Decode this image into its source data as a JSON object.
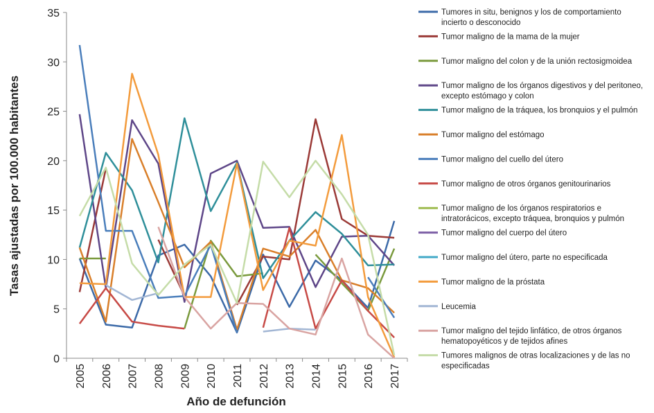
{
  "chart_data": {
    "type": "line",
    "title": "",
    "xlabel": "Año de defunción",
    "ylabel": "Tasas ajustadas por 100.000 habitantes",
    "x": [
      "2005",
      "2006",
      "2007",
      "2008",
      "2009",
      "2010",
      "2011",
      "2012",
      "2013",
      "2014",
      "2015",
      "2016",
      "2017"
    ],
    "ylim": [
      0,
      35
    ],
    "yticks": [
      0,
      5,
      10,
      15,
      20,
      25,
      30,
      35
    ],
    "grid": false,
    "legend_position": "right",
    "series": [
      {
        "name": "Tumores in situ, benignos y los de comportamiento incierto o desconocido",
        "name_lines": [
          "Tumores in situ, benignos y los de comportamiento",
          "incierto o desconocido"
        ],
        "color": "#3c6aa8",
        "values": [
          10.1,
          3.4,
          3.1,
          10.4,
          11.5,
          8.3,
          2.6,
          10.5,
          5.2,
          9.9,
          7.9,
          5.1,
          13.9
        ]
      },
      {
        "name": "Tumor maligno de la mama de la mujer",
        "name_lines": [
          "Tumor maligno de la mama de la mujer"
        ],
        "color": "#9b3a37",
        "values": [
          6.7,
          19.2,
          null,
          12.0,
          6.3,
          null,
          5.4,
          10.3,
          10.0,
          24.2,
          14.1,
          12.4,
          12.2
        ]
      },
      {
        "name": "Tumor maligno del colon y de la unión rectosigmoidea",
        "name_lines": [
          "Tumor maligno del colon y de la unión rectosigmoidea"
        ],
        "color": "#7a9a3d",
        "values": [
          10.1,
          10.1,
          null,
          null,
          3.0,
          11.9,
          8.3,
          8.6,
          null,
          10.5,
          7.6,
          4.8,
          11.1
        ]
      },
      {
        "name": "Tumor maligno de los órganos digestivos y del peritoneo, excepto estómago y colon",
        "name_lines": [
          "Tumor maligno de los órganos digestivos y del peritoneo,",
          "excepto estómago y colon"
        ],
        "color": "#5e4688",
        "values": [
          24.7,
          7.1,
          24.1,
          19.7,
          5.7,
          18.7,
          20.0,
          13.2,
          13.3,
          7.2,
          12.3,
          12.4,
          9.4
        ]
      },
      {
        "name": "Tumor maligno de la tráquea, los bronquios y el pulmón",
        "name_lines": [
          "Tumor maligno de la tráquea, los bronquios y el pulmón"
        ],
        "color": "#2f8f9a",
        "values": [
          11.2,
          20.8,
          17.0,
          9.7,
          24.3,
          14.9,
          19.8,
          8.1,
          11.9,
          14.8,
          12.6,
          9.4,
          9.5
        ]
      },
      {
        "name": "Tumor maligno del estómago",
        "name_lines": [
          "Tumor maligno del estómago"
        ],
        "color": "#d97f2a",
        "values": [
          11.2,
          3.7,
          22.2,
          15.8,
          9.2,
          11.8,
          2.9,
          11.1,
          10.3,
          13.0,
          7.9,
          7.1,
          4.6
        ]
      },
      {
        "name": "Tumor maligno del cuello del útero",
        "name_lines": [
          "Tumor maligno del cuello del útero"
        ],
        "color": "#4a7ebb",
        "values": [
          31.7,
          12.9,
          12.9,
          6.1,
          6.3,
          11.5,
          2.6,
          null,
          null,
          null,
          null,
          8.2,
          4.1
        ]
      },
      {
        "name": "Tumor maligno de otros órganos genitourinarios",
        "name_lines": [
          "Tumor maligno de otros órganos genitourinarios"
        ],
        "color": "#c74a46",
        "values": [
          3.5,
          7.1,
          3.7,
          3.3,
          3.0,
          null,
          null,
          3.1,
          13.2,
          3.0,
          7.9,
          4.8,
          2.1
        ]
      },
      {
        "name": "Tumor maligno de los órganos respiratorios e intratorácicos, excepto tráquea, bronquios y pulmón",
        "name_lines": [
          "Tumor maligno de los órganos respiratorios e",
          "intratorácicos, excepto tráquea, bronquios y pulmón"
        ],
        "color": "#9dbb4e",
        "values": [
          null,
          null,
          null,
          null,
          null,
          null,
          null,
          null,
          null,
          null,
          null,
          null,
          null
        ]
      },
      {
        "name": "Tumor maligno del cuerpo del útero",
        "name_lines": [
          "Tumor maligno del cuerpo del útero"
        ],
        "color": "#7d5fa6",
        "values": [
          null,
          null,
          null,
          null,
          null,
          null,
          null,
          null,
          null,
          null,
          null,
          null,
          null
        ]
      },
      {
        "name": "Tumor maligno del útero, parte no especificada",
        "name_lines": [
          "Tumor maligno del útero, parte no especificada"
        ],
        "color": "#41a9c7",
        "values": [
          null,
          null,
          null,
          null,
          null,
          null,
          null,
          null,
          null,
          null,
          null,
          null,
          null
        ]
      },
      {
        "name": "Tumor maligno de la próstata",
        "name_lines": [
          "Tumor maligno de la próstata"
        ],
        "color": "#f39b3c",
        "values": [
          7.6,
          7.5,
          28.8,
          20.6,
          6.2,
          6.2,
          19.7,
          6.9,
          11.9,
          11.4,
          22.6,
          6.2,
          0.1
        ]
      },
      {
        "name": "Leucemia",
        "name_lines": [
          "Leucemia"
        ],
        "color": "#a2b6d4",
        "values": [
          null,
          7.4,
          5.9,
          6.6,
          null,
          null,
          null,
          2.7,
          3.0,
          2.9,
          null,
          null,
          null
        ]
      },
      {
        "name": "Tumor maligno del tejido linfático, de otros órganos hematopoyéticos y de tejidos afines",
        "name_lines": [
          "Tumor maligno del tejido linfático, de otros órganos",
          "hematopoyéticos y de tejidos afines"
        ],
        "color": "#d9a4a2",
        "values": [
          null,
          null,
          null,
          13.3,
          6.2,
          3.0,
          5.6,
          5.5,
          3.0,
          2.4,
          10.1,
          2.4,
          0.0
        ]
      },
      {
        "name": "Tumores malignos de otras localizaciones y de las no especificadas",
        "name_lines": [
          "Tumores malignos de otras localizaciones y de las no",
          "especificadas"
        ],
        "color": "#c5dca8",
        "values": [
          14.4,
          19.3,
          9.6,
          6.4,
          9.5,
          11.5,
          5.6,
          19.9,
          16.3,
          20.0,
          16.6,
          12.5,
          0.3
        ]
      }
    ]
  }
}
